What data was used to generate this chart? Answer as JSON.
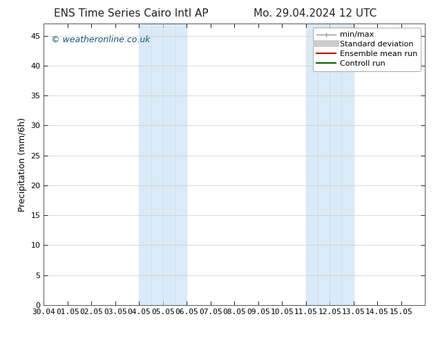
{
  "title_left": "ENS Time Series Cairo Intl AP",
  "title_right": "Mo. 29.04.2024 12 UTC",
  "xlabel": "",
  "ylabel": "Precipitation (mm/6h)",
  "xlim": [
    0,
    16
  ],
  "ylim": [
    0,
    47
  ],
  "yticks": [
    0,
    5,
    10,
    15,
    20,
    25,
    30,
    35,
    40,
    45
  ],
  "xtick_labels": [
    "30.04",
    "01.05",
    "02.05",
    "03.05",
    "04.05",
    "05.05",
    "06.05",
    "07.05",
    "08.05",
    "09.05",
    "10.05",
    "11.05",
    "12.05",
    "13.05",
    "14.05",
    "15.05"
  ],
  "shaded_region_1": {
    "xmin": 4.0,
    "xmax": 6.0
  },
  "shaded_region_2": {
    "xmin": 11.0,
    "xmax": 13.0
  },
  "bg_color": "#ffffff",
  "plot_bg_color": "#ffffff",
  "grid_color": "#cccccc",
  "shade_color": "#daeaf6",
  "watermark_text": "© weatheronline.co.uk",
  "watermark_color": "#1a5276",
  "legend_labels": [
    "min/max",
    "Standard deviation",
    "Ensemble mean run",
    "Controll run"
  ],
  "legend_colors": [
    "#999999",
    "#cccccc",
    "#cc0000",
    "#006600"
  ],
  "title_fontsize": 11,
  "axis_label_fontsize": 9,
  "tick_fontsize": 8,
  "watermark_fontsize": 9,
  "legend_fontsize": 8
}
